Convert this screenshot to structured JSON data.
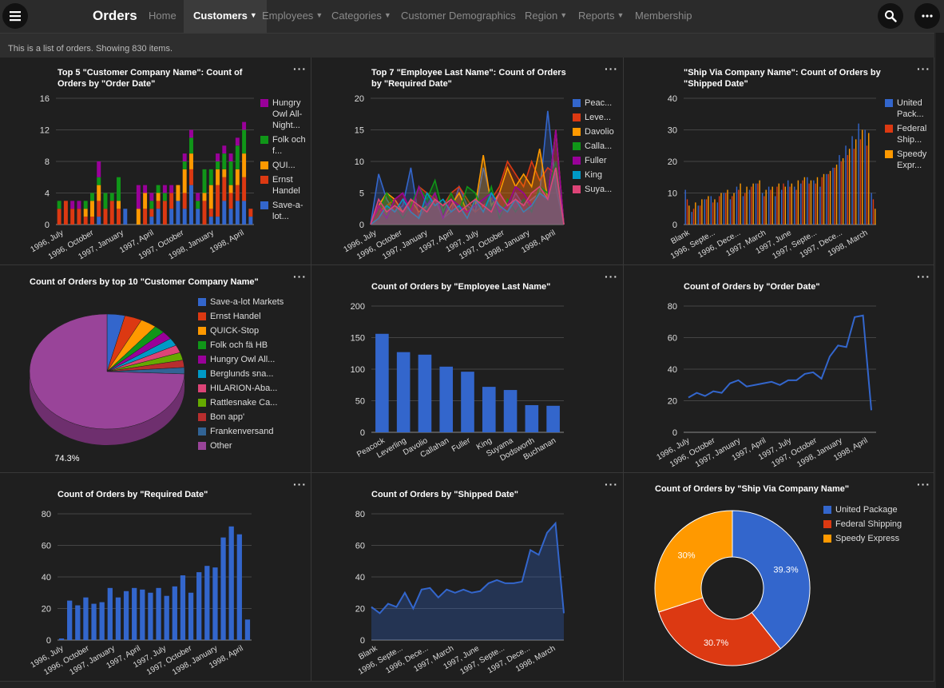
{
  "header": {
    "title": "Orders",
    "nav": [
      {
        "label": "Home",
        "caret": false,
        "active": false
      },
      {
        "label": "Customers",
        "caret": true,
        "active": true
      },
      {
        "label": "Employees",
        "caret": true,
        "active": false
      },
      {
        "label": "Categories",
        "caret": true,
        "active": false
      },
      {
        "label": "Customer Demographics",
        "caret": false,
        "active": false
      },
      {
        "label": "Region",
        "caret": true,
        "active": false
      },
      {
        "label": "Reports",
        "caret": true,
        "active": false
      },
      {
        "label": "Membership",
        "caret": false,
        "active": false
      }
    ],
    "search_icon": "search-icon",
    "more_icon": "more-icon"
  },
  "info_text": "This is a list of orders. Showing 830 items.",
  "colors": {
    "blue": "#3366cc",
    "red": "#dc3912",
    "orange": "#ff9900",
    "green": "#109618",
    "purple": "#990099",
    "cyan": "#0099c6",
    "pink": "#dd4477",
    "lime": "#66aa00",
    "darkred": "#b82e2e",
    "slate": "#316395",
    "violet": "#994499"
  },
  "chart_data": [
    {
      "type": "bar",
      "stacked": true,
      "title": "Top 5 \"Customer Company Name\": Count of Orders by \"Order Date\"",
      "ylim": [
        0,
        16
      ],
      "yticks": [
        0,
        4,
        8,
        12,
        16
      ],
      "xlabels": [
        "1996, July",
        "1996, October",
        "1997, January",
        "1997, April",
        "1997, October",
        "1998, January",
        "1998, April"
      ],
      "series": [
        {
          "name": "Save-a-lot...",
          "color": "#3366cc",
          "values": [
            0,
            0,
            0,
            0,
            0,
            0,
            1,
            0,
            0,
            0,
            2,
            0,
            0,
            0,
            1,
            2,
            0,
            2,
            3,
            2,
            5,
            2,
            0,
            1,
            1,
            3,
            2,
            3,
            3,
            1
          ]
        },
        {
          "name": "Ernst Handel",
          "color": "#dc3912",
          "values": [
            2,
            3,
            2,
            2,
            1,
            1,
            2,
            2,
            3,
            2,
            0,
            0,
            0,
            2,
            1,
            1,
            3,
            2,
            0,
            2,
            2,
            0,
            3,
            1,
            4,
            3,
            2,
            2,
            3,
            1
          ]
        },
        {
          "name": "QUI...",
          "color": "#ff9900",
          "values": [
            0,
            0,
            0,
            0,
            1,
            2,
            2,
            0,
            0,
            1,
            0,
            0,
            2,
            2,
            0,
            1,
            0,
            0,
            2,
            3,
            2,
            0,
            1,
            3,
            2,
            1,
            1,
            2,
            3,
            0
          ]
        },
        {
          "name": "Folk och f...",
          "color": "#109618",
          "values": [
            1,
            0,
            0,
            0,
            1,
            1,
            1,
            2,
            1,
            3,
            0,
            0,
            0,
            0,
            1,
            1,
            1,
            0,
            0,
            1,
            2,
            1,
            3,
            2,
            1,
            2,
            3,
            3,
            3,
            0
          ]
        },
        {
          "name": "Hungry Owl All-Night...",
          "color": "#990099",
          "values": [
            0,
            0,
            1,
            1,
            0,
            0,
            2,
            0,
            0,
            0,
            0,
            0,
            3,
            1,
            1,
            0,
            1,
            1,
            0,
            1,
            1,
            1,
            0,
            0,
            1,
            1,
            1,
            1,
            1,
            0
          ]
        }
      ]
    },
    {
      "type": "area",
      "title": "Top 7 \"Employee Last Name\": Count of Orders by \"Required Date\"",
      "ylim": [
        0,
        20
      ],
      "yticks": [
        0,
        5,
        10,
        15,
        20
      ],
      "xlabels": [
        "1996, July",
        "1996, October",
        "1997, January",
        "1997, April",
        "1997, July",
        "1997, October",
        "1998, January",
        "1998, April"
      ],
      "series": [
        {
          "name": "Peac...",
          "color": "#3366cc",
          "values": [
            0,
            8,
            4,
            2,
            3,
            9,
            1,
            3,
            4,
            1,
            2,
            6,
            3,
            2,
            9,
            4,
            3,
            2,
            5,
            3,
            4,
            5,
            18,
            6,
            0
          ]
        },
        {
          "name": "Leve...",
          "color": "#dc3912",
          "values": [
            0,
            2,
            3,
            4,
            5,
            2,
            6,
            5,
            4,
            3,
            5,
            6,
            4,
            2,
            3,
            4,
            6,
            10,
            8,
            6,
            10,
            7,
            9,
            8,
            0
          ]
        },
        {
          "name": "Davolio",
          "color": "#ff9900",
          "values": [
            0,
            3,
            5,
            4,
            2,
            4,
            2,
            3,
            5,
            1,
            3,
            5,
            2,
            3,
            11,
            3,
            5,
            9,
            6,
            8,
            6,
            12,
            4,
            15,
            0
          ]
        },
        {
          "name": "Calla...",
          "color": "#109618",
          "values": [
            0,
            2,
            5,
            3,
            1,
            3,
            6,
            4,
            7,
            2,
            5,
            2,
            6,
            5,
            2,
            6,
            1,
            4,
            2,
            4,
            2,
            6,
            5,
            10,
            0
          ]
        },
        {
          "name": "Fuller",
          "color": "#990099",
          "values": [
            0,
            3,
            1,
            4,
            5,
            2,
            6,
            3,
            5,
            1,
            4,
            3,
            2,
            3,
            4,
            5,
            2,
            3,
            6,
            5,
            3,
            5,
            4,
            15,
            0
          ]
        },
        {
          "name": "King",
          "color": "#0099c6",
          "values": [
            0,
            1,
            3,
            2,
            4,
            2,
            1,
            5,
            3,
            4,
            2,
            3,
            1,
            4,
            2,
            5,
            3,
            2,
            4,
            2,
            3,
            5,
            4,
            9,
            0
          ]
        },
        {
          "name": "Suya...",
          "color": "#dd4477",
          "values": [
            0,
            4,
            2,
            3,
            2,
            4,
            3,
            2,
            4,
            3,
            4,
            2,
            3,
            4,
            3,
            2,
            5,
            3,
            4,
            3,
            5,
            6,
            4,
            9,
            0
          ]
        }
      ]
    },
    {
      "type": "bar",
      "grouped": true,
      "title": "\"Ship Via Company Name\": Count of Orders by \"Shipped Date\"",
      "ylim": [
        0,
        40
      ],
      "yticks": [
        0,
        10,
        20,
        30,
        40
      ],
      "xlabels": [
        "Blank",
        "1996, Septe...",
        "1996, Dece...",
        "1997, March",
        "1997, June",
        "1997, Septe...",
        "1997, Dece...",
        "1998, March"
      ],
      "series": [
        {
          "name": "United Pack...",
          "color": "#3366cc",
          "values": [
            11,
            4,
            6,
            8,
            9,
            7,
            10,
            8,
            12,
            9,
            11,
            13,
            10,
            12,
            9,
            11,
            14,
            12,
            13,
            15,
            14,
            12,
            16,
            18,
            22,
            25,
            28,
            32,
            30,
            10
          ]
        },
        {
          "name": "Federal Ship...",
          "color": "#dc3912",
          "values": [
            8,
            5,
            6,
            8,
            7,
            9,
            10,
            9,
            11,
            10,
            12,
            13,
            9,
            11,
            12,
            13,
            12,
            11,
            14,
            13,
            13,
            15,
            16,
            18,
            20,
            22,
            24,
            27,
            25,
            8
          ]
        },
        {
          "name": "Speedy Expr...",
          "color": "#ff9900",
          "values": [
            6,
            7,
            8,
            9,
            8,
            10,
            11,
            10,
            13,
            12,
            13,
            14,
            11,
            12,
            13,
            12,
            13,
            14,
            15,
            14,
            15,
            16,
            17,
            19,
            21,
            24,
            27,
            30,
            29,
            5
          ]
        }
      ]
    },
    {
      "type": "pie",
      "title": "Count of Orders by top 10 \"Customer Company Name\"",
      "slices": [
        {
          "label": "Save-a-lot Markets",
          "value": 31,
          "color": "#3366cc"
        },
        {
          "label": "Ernst Handel",
          "value": 30,
          "color": "#dc3912"
        },
        {
          "label": "QUICK-Stop",
          "value": 28,
          "color": "#ff9900"
        },
        {
          "label": "Folk och fä HB",
          "value": 19,
          "color": "#109618"
        },
        {
          "label": "Hungry Owl All...",
          "value": 19,
          "color": "#990099"
        },
        {
          "label": "Berglunds sna...",
          "value": 18,
          "color": "#0099c6"
        },
        {
          "label": "HILARION-Aba...",
          "value": 18,
          "color": "#dd4477"
        },
        {
          "label": "Rattlesnake Ca...",
          "value": 18,
          "color": "#66aa00"
        },
        {
          "label": "Bon app'",
          "value": 17,
          "color": "#b82e2e"
        },
        {
          "label": "Frankenversand",
          "value": 15,
          "color": "#316395"
        },
        {
          "label": "Other",
          "value": 617,
          "color": "#994499"
        }
      ],
      "slice_label": "74.3%"
    },
    {
      "type": "bar",
      "title": "Count of Orders by \"Employee Last Name\"",
      "ylim": [
        0,
        200
      ],
      "yticks": [
        0,
        50,
        100,
        150,
        200
      ],
      "categories": [
        "Peacock",
        "Leverling",
        "Davolio",
        "Callahan",
        "Fuller",
        "King",
        "Suyama",
        "Dodsworth",
        "Buchanan"
      ],
      "values": [
        156,
        127,
        123,
        104,
        96,
        72,
        67,
        43,
        42
      ]
    },
    {
      "type": "line",
      "title": "Count of Orders by \"Order Date\"",
      "ylim": [
        0,
        80
      ],
      "yticks": [
        0,
        20,
        40,
        60,
        80
      ],
      "xlabels": [
        "1996, July",
        "1996, October",
        "1997, January",
        "1997, April",
        "1997, July",
        "1997, October",
        "1998, January",
        "1998, April"
      ],
      "values": [
        22,
        25,
        23,
        26,
        25,
        31,
        33,
        29,
        30,
        31,
        32,
        30,
        33,
        33,
        37,
        38,
        34,
        48,
        55,
        54,
        73,
        74,
        14
      ]
    },
    {
      "type": "bar",
      "title": "Count of Orders by \"Required Date\"",
      "ylim": [
        0,
        80
      ],
      "yticks": [
        0,
        20,
        40,
        60,
        80
      ],
      "xlabels": [
        "1996, July",
        "1996, October",
        "1997, January",
        "1997, April",
        "1997, July",
        "1997, October",
        "1998, January",
        "1998, April"
      ],
      "values": [
        1,
        25,
        22,
        27,
        23,
        24,
        33,
        27,
        31,
        33,
        32,
        30,
        33,
        28,
        34,
        41,
        30,
        43,
        47,
        46,
        65,
        72,
        67,
        13
      ]
    },
    {
      "type": "area",
      "title": "Count of Orders by \"Shipped Date\"",
      "ylim": [
        0,
        80
      ],
      "yticks": [
        0,
        20,
        40,
        60,
        80
      ],
      "xlabels": [
        "Blank",
        "1996, Septe...",
        "1996, Dece...",
        "1997, March",
        "1997, June",
        "1997, Septe...",
        "1997, Dece...",
        "1998, March"
      ],
      "values": [
        21,
        17,
        23,
        21,
        30,
        20,
        32,
        33,
        27,
        32,
        30,
        32,
        30,
        31,
        36,
        38,
        36,
        36,
        37,
        57,
        54,
        68,
        74,
        17
      ]
    },
    {
      "type": "pie",
      "donut": true,
      "title": "Count of Orders by \"Ship Via Company Name\"",
      "slices": [
        {
          "label": "United Package",
          "value": 39.3,
          "color": "#3366cc",
          "text": "39.3%"
        },
        {
          "label": "Federal Shipping",
          "value": 30.7,
          "color": "#dc3912",
          "text": "30.7%"
        },
        {
          "label": "Speedy Express",
          "value": 30.0,
          "color": "#ff9900",
          "text": "30%"
        }
      ]
    }
  ]
}
